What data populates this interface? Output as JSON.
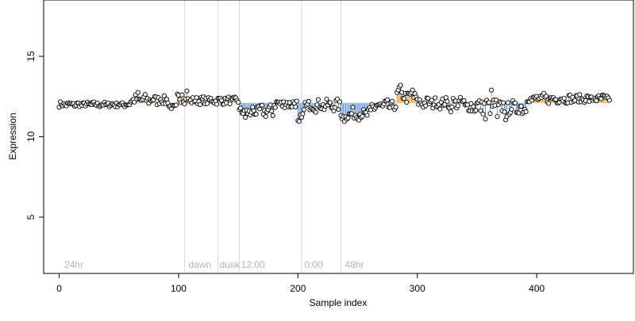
{
  "chart_data": {
    "type": "scatter",
    "title": "",
    "xlabel": "Sample index",
    "ylabel": "Expression",
    "xlim": [
      -13,
      481
    ],
    "ylim": [
      1.5,
      18.5
    ],
    "xticks": [
      0,
      100,
      200,
      300,
      400
    ],
    "yticks": [
      5,
      10,
      15
    ],
    "baseline": 12.1,
    "grid": false,
    "legend": "none",
    "colors": {
      "point_fill": "#ffffff",
      "point_stroke": "#000000",
      "above_baseline": "#f0a330",
      "below_baseline": "#6f9fdc",
      "divider": "#d9d9d9",
      "annotation": "#b3b3b3",
      "frame": "#000000"
    },
    "dividers": [
      105,
      133,
      151,
      203,
      236
    ],
    "annotations": [
      {
        "x": 3,
        "text": "24hr"
      },
      {
        "x": 107,
        "text": "dawn"
      },
      {
        "x": 133,
        "text": "dusk"
      },
      {
        "x": 151,
        "text": "12:00"
      },
      {
        "x": 204,
        "text": "0:00"
      },
      {
        "x": 238,
        "text": "48hr"
      }
    ],
    "segments": [
      {
        "x0": 0,
        "x1": 60,
        "level": 12.0,
        "amp": 0.16
      },
      {
        "x0": 60,
        "x1": 92,
        "level": 12.3,
        "amp": 0.3
      },
      {
        "x0": 92,
        "x1": 99,
        "level": 11.85,
        "amp": 0.15
      },
      {
        "x0": 99,
        "x1": 105,
        "level": 12.4,
        "amp": 0.25
      },
      {
        "x0": 105,
        "x1": 151,
        "level": 12.25,
        "amp": 0.22
      },
      {
        "x0": 151,
        "x1": 180,
        "level": 11.6,
        "amp": 0.35
      },
      {
        "x0": 180,
        "x1": 202,
        "level": 12.05,
        "amp": 0.3
      },
      {
        "x0": 202,
        "x1": 205,
        "level": 11.2,
        "amp": 0.2
      },
      {
        "x0": 205,
        "x1": 236,
        "level": 11.95,
        "amp": 0.35
      },
      {
        "x0": 236,
        "x1": 262,
        "level": 11.4,
        "amp": 0.35
      },
      {
        "x0": 262,
        "x1": 283,
        "level": 11.9,
        "amp": 0.35
      },
      {
        "x0": 283,
        "x1": 300,
        "level": 12.5,
        "amp": 0.35
      },
      {
        "x0": 300,
        "x1": 340,
        "level": 12.1,
        "amp": 0.32
      },
      {
        "x0": 340,
        "x1": 370,
        "level": 11.9,
        "amp": 0.45
      },
      {
        "x0": 370,
        "x1": 392,
        "level": 11.8,
        "amp": 0.45
      },
      {
        "x0": 392,
        "x1": 462,
        "level": 12.35,
        "amp": 0.25
      }
    ],
    "highlights": [
      {
        "x": 284,
        "y": 12.9
      },
      {
        "x": 285,
        "y": 13.1
      },
      {
        "x": 286,
        "y": 13.2
      },
      {
        "x": 288,
        "y": 12.4
      },
      {
        "x": 296,
        "y": 12.9
      },
      {
        "x": 362,
        "y": 12.9
      },
      {
        "x": 103,
        "y": 12.6
      },
      {
        "x": 107,
        "y": 12.85
      },
      {
        "x": 66,
        "y": 12.75
      },
      {
        "x": 200,
        "y": 12.6
      },
      {
        "x": 200,
        "y": 11.0
      },
      {
        "x": 201,
        "y": 10.95
      },
      {
        "x": 203,
        "y": 11.2
      },
      {
        "x": 239,
        "y": 10.95
      },
      {
        "x": 241,
        "y": 11.1
      },
      {
        "x": 250,
        "y": 11.1
      },
      {
        "x": 156,
        "y": 11.2
      },
      {
        "x": 160,
        "y": 11.35
      },
      {
        "x": 357,
        "y": 11.1
      },
      {
        "x": 367,
        "y": 11.25
      },
      {
        "x": 374,
        "y": 11.05
      },
      {
        "x": 375,
        "y": 11.25
      },
      {
        "x": 328,
        "y": 11.55
      },
      {
        "x": 406,
        "y": 12.7
      },
      {
        "x": 452,
        "y": 12.55
      }
    ],
    "n_points": 462
  }
}
